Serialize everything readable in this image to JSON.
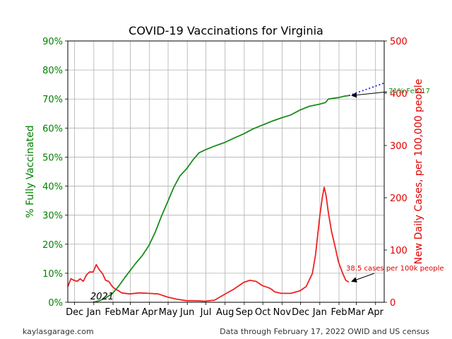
{
  "chart_data": {
    "type": "line",
    "title": "COVID-19 Vaccinations for Virginia",
    "ylabel_left": "% Fully Vaccinated",
    "ylabel_right": "New Daily Cases, per 100,000 people",
    "xlabel": "",
    "year_label": "2021",
    "x_tick_labels": [
      "Dec",
      "Jan",
      "Feb",
      "Mar",
      "Apr",
      "May",
      "Jun",
      "Jul",
      "Aug",
      "Sep",
      "Oct",
      "Nov",
      "Dec",
      "Jan",
      "Feb",
      "Mar",
      "Apr"
    ],
    "x_tick_dates": [
      "2020-12-01",
      "2021-01-01",
      "2021-02-01",
      "2021-03-01",
      "2021-04-01",
      "2021-05-01",
      "2021-06-01",
      "2021-07-01",
      "2021-08-01",
      "2021-09-01",
      "2021-10-01",
      "2021-11-01",
      "2021-12-01",
      "2022-01-01",
      "2022-02-01",
      "2022-03-01",
      "2022-04-01"
    ],
    "x_range": [
      "2020-11-20",
      "2022-04-15"
    ],
    "y_left_ticks": [
      "0%",
      "10%",
      "20%",
      "30%",
      "40%",
      "50%",
      "60%",
      "70%",
      "80%",
      "90%"
    ],
    "y_left_range": [
      0,
      90
    ],
    "y_right_ticks": [
      "0",
      "100",
      "200",
      "300",
      "400",
      "500"
    ],
    "y_right_range": [
      0,
      500
    ],
    "grid": true,
    "colors": {
      "vaccinated": "#1a8c1a",
      "cases": "#ee2222",
      "projection": "#2222dd",
      "left_axis": "#008000",
      "right_axis": "#e00000"
    },
    "series": [
      {
        "axis": "left",
        "points": [
          [
            "2020-12-31",
            0.0
          ],
          [
            "2021-01-10",
            0.5
          ],
          [
            "2021-01-20",
            1.5
          ],
          [
            "2021-01-31",
            3.0
          ],
          [
            "2021-02-10",
            5.5
          ],
          [
            "2021-02-20",
            8.5
          ],
          [
            "2021-03-01",
            11.0
          ],
          [
            "2021-03-10",
            13.5
          ],
          [
            "2021-03-20",
            16.0
          ],
          [
            "2021-03-31",
            19.5
          ],
          [
            "2021-04-10",
            24.0
          ],
          [
            "2021-04-20",
            29.5
          ],
          [
            "2021-04-30",
            34.5
          ],
          [
            "2021-05-10",
            39.5
          ],
          [
            "2021-05-20",
            43.5
          ],
          [
            "2021-05-31",
            46.0
          ],
          [
            "2021-06-10",
            49.0
          ],
          [
            "2021-06-20",
            51.5
          ],
          [
            "2021-06-30",
            52.5
          ],
          [
            "2021-07-15",
            53.8
          ],
          [
            "2021-07-31",
            55.0
          ],
          [
            "2021-08-15",
            56.5
          ],
          [
            "2021-08-31",
            58.0
          ],
          [
            "2021-09-15",
            59.7
          ],
          [
            "2021-09-30",
            61.0
          ],
          [
            "2021-10-15",
            62.3
          ],
          [
            "2021-10-31",
            63.5
          ],
          [
            "2021-11-15",
            64.5
          ],
          [
            "2021-11-30",
            66.2
          ],
          [
            "2021-12-15",
            67.5
          ],
          [
            "2021-12-31",
            68.2
          ],
          [
            "2022-01-10",
            68.8
          ],
          [
            "2022-01-15",
            70.0
          ],
          [
            "2022-01-31",
            70.5
          ],
          [
            "2022-02-10",
            71.0
          ],
          [
            "2022-02-17",
            71.2
          ]
        ]
      },
      {
        "axis": "left",
        "style": "dotted",
        "points": [
          [
            "2022-02-17",
            71.2
          ],
          [
            "2022-04-15",
            75.5
          ]
        ]
      },
      {
        "axis": "right",
        "points": [
          [
            "2020-11-20",
            30
          ],
          [
            "2020-11-25",
            45
          ],
          [
            "2020-11-30",
            42
          ],
          [
            "2020-12-05",
            40
          ],
          [
            "2020-12-10",
            45
          ],
          [
            "2020-12-15",
            40
          ],
          [
            "2020-12-20",
            52
          ],
          [
            "2020-12-25",
            58
          ],
          [
            "2020-12-31",
            58
          ],
          [
            "2021-01-05",
            72
          ],
          [
            "2021-01-10",
            62
          ],
          [
            "2021-01-15",
            55
          ],
          [
            "2021-01-20",
            42
          ],
          [
            "2021-01-25",
            40
          ],
          [
            "2021-01-31",
            30
          ],
          [
            "2021-02-05",
            25
          ],
          [
            "2021-02-10",
            22
          ],
          [
            "2021-02-15",
            18
          ],
          [
            "2021-02-28",
            16
          ],
          [
            "2021-03-15",
            18
          ],
          [
            "2021-03-31",
            17
          ],
          [
            "2021-04-15",
            16
          ],
          [
            "2021-04-30",
            10
          ],
          [
            "2021-05-15",
            6
          ],
          [
            "2021-05-31",
            3
          ],
          [
            "2021-06-15",
            3
          ],
          [
            "2021-06-30",
            2
          ],
          [
            "2021-07-15",
            4
          ],
          [
            "2021-07-31",
            15
          ],
          [
            "2021-08-15",
            25
          ],
          [
            "2021-08-31",
            38
          ],
          [
            "2021-09-10",
            42
          ],
          [
            "2021-09-20",
            40
          ],
          [
            "2021-09-30",
            32
          ],
          [
            "2021-10-10",
            28
          ],
          [
            "2021-10-15",
            25
          ],
          [
            "2021-10-20",
            20
          ],
          [
            "2021-10-31",
            17
          ],
          [
            "2021-11-15",
            17
          ],
          [
            "2021-11-30",
            22
          ],
          [
            "2021-12-10",
            30
          ],
          [
            "2021-12-20",
            55
          ],
          [
            "2021-12-25",
            90
          ],
          [
            "2022-01-01",
            165
          ],
          [
            "2022-01-05",
            200
          ],
          [
            "2022-01-08",
            220
          ],
          [
            "2022-01-11",
            205
          ],
          [
            "2022-01-15",
            170
          ],
          [
            "2022-01-20",
            135
          ],
          [
            "2022-01-25",
            110
          ],
          [
            "2022-01-31",
            78
          ],
          [
            "2022-02-07",
            55
          ],
          [
            "2022-02-12",
            42
          ],
          [
            "2022-02-17",
            38.5
          ]
        ]
      }
    ],
    "annotations": [
      {
        "text": "71% Feb 17",
        "axis": "left",
        "target": [
          "2022-02-17",
          71.2
        ],
        "color": "#1a8c1a"
      },
      {
        "text": "38.5 cases per 100k people",
        "axis": "right",
        "target": [
          "2022-02-17",
          38.5
        ],
        "color": "#e00000"
      }
    ],
    "footer_left": "kaylasgarage.com",
    "footer_right": "Data through February 17, 2022 OWID and US census"
  }
}
